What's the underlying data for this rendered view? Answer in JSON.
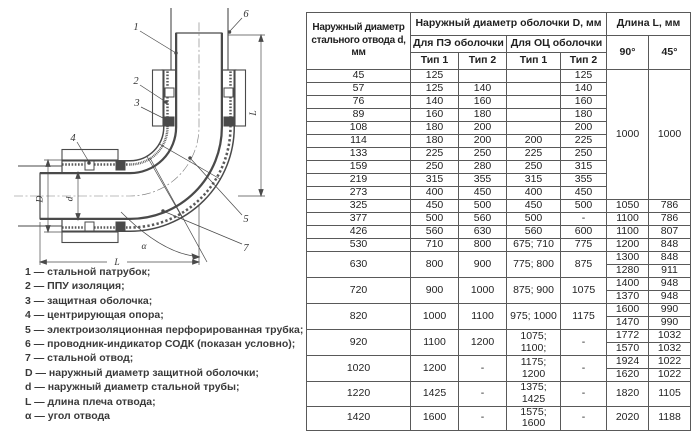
{
  "colors": {
    "drawing_line": "#4a4a4a",
    "table_border": "#595959",
    "text": "#1f1f1f",
    "background": "#ffffff"
  },
  "diagram": {
    "callouts": {
      "c1": "1",
      "c2": "2",
      "c3": "3",
      "c4": "4",
      "c5": "5",
      "c6": "6",
      "c7": "7"
    },
    "dims": {
      "D": "D",
      "d": "d",
      "L": "L",
      "alpha": "α"
    }
  },
  "legend": [
    "1 — стальной патрубок;",
    "2 — ППУ изоляция;",
    "3 — защитная оболочка;",
    "4 — центрирующая опора;",
    "5 — электроизоляционная перфорированная трубка;",
    "6 — проводник-индикатор СОДК (показан условно);",
    "7 — стальной отвод;",
    "D — наружный диаметр защитной оболочки;",
    "d — наружный диаметр стальной трубы;",
    "L — длина плеча отвода;",
    "α — угол отвода"
  ],
  "table": {
    "header": {
      "col_d_line1": "Наружный диаметр",
      "col_d_line2": "стального отвода d, мм",
      "group_D": "Наружный диаметр оболочки D, мм",
      "group_L": "Длина L, мм",
      "sub_pe": "Для ПЭ оболочки",
      "sub_oc": "Для ОЦ оболочки",
      "type1": "Тип 1",
      "type2": "Тип 2",
      "deg90": "90°",
      "deg45": "45°"
    },
    "rows": [
      {
        "c": [
          "45",
          "125",
          "",
          "",
          "125"
        ],
        "l": [
          "1000",
          "1000"
        ],
        "lspan": 10
      },
      {
        "c": [
          "57",
          "125",
          "140",
          "",
          "140"
        ]
      },
      {
        "c": [
          "76",
          "140",
          "160",
          "",
          "160"
        ]
      },
      {
        "c": [
          "89",
          "160",
          "180",
          "",
          "180"
        ]
      },
      {
        "c": [
          "108",
          "180",
          "200",
          "",
          "200"
        ]
      },
      {
        "c": [
          "114",
          "180",
          "200",
          "200",
          "225"
        ]
      },
      {
        "c": [
          "133",
          "225",
          "250",
          "225",
          "250"
        ]
      },
      {
        "c": [
          "159",
          "250",
          "280",
          "250",
          "315"
        ]
      },
      {
        "c": [
          "219",
          "315",
          "355",
          "315",
          "355"
        ]
      },
      {
        "c": [
          "273",
          "400",
          "450",
          "400",
          "450"
        ]
      },
      {
        "c": [
          "325",
          "450",
          "500",
          "450",
          "500"
        ],
        "l": [
          "1050",
          "786"
        ]
      },
      {
        "c": [
          "377",
          "500",
          "560",
          "500",
          "-"
        ],
        "l": [
          "1100",
          "786"
        ]
      },
      {
        "c": [
          "426",
          "560",
          "630",
          "560",
          "600"
        ],
        "l": [
          "1100",
          "807"
        ]
      },
      {
        "c": [
          "530",
          "710",
          "800",
          "675; 710",
          "775"
        ],
        "l": [
          "1200",
          "848"
        ]
      },
      {
        "c": [
          "630",
          "800",
          "900",
          "775; 800",
          "875"
        ],
        "cspan": 2,
        "l": [
          "1300",
          "848"
        ]
      },
      {
        "l": [
          "1280",
          "911"
        ]
      },
      {
        "c": [
          "720",
          "900",
          "1000",
          "875; 900",
          "1075"
        ],
        "cspan": 2,
        "l": [
          "1400",
          "948"
        ]
      },
      {
        "l": [
          "1370",
          "948"
        ]
      },
      {
        "c": [
          "820",
          "1000",
          "1100",
          "975; 1000",
          "1175"
        ],
        "cspan": 2,
        "l": [
          "1600",
          "990"
        ]
      },
      {
        "l": [
          "1470",
          "990"
        ]
      },
      {
        "c": [
          "920",
          "1100",
          "1200",
          "1075; 1100;",
          "-"
        ],
        "cspan": 2,
        "l": [
          "1772",
          "1032"
        ]
      },
      {
        "l": [
          "1570",
          "1032"
        ]
      },
      {
        "c": [
          "1020",
          "1200",
          "-",
          "1175; 1200",
          "-"
        ],
        "cspan": 2,
        "l": [
          "1924",
          "1022"
        ]
      },
      {
        "l": [
          "1620",
          "1022"
        ]
      },
      {
        "c": [
          "1220",
          "1425",
          "-",
          "1375; 1425",
          "-"
        ],
        "l": [
          "1820",
          "1105"
        ]
      },
      {
        "c": [
          "1420",
          "1600",
          "-",
          "1575; 1600",
          "-"
        ],
        "l": [
          "2020",
          "1188"
        ]
      }
    ]
  }
}
